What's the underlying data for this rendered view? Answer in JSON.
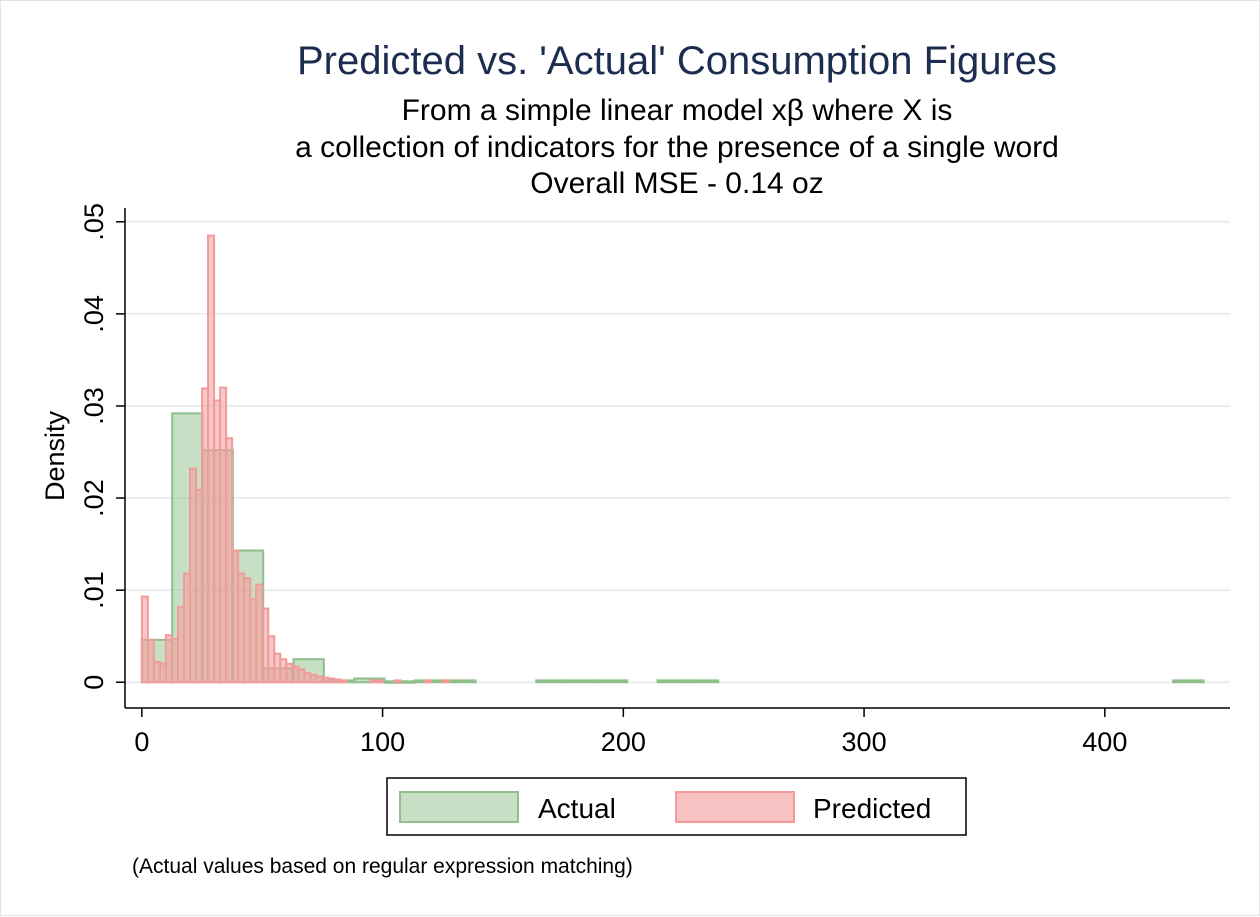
{
  "chart_data": {
    "type": "histogram",
    "title": "Predicted vs. 'Actual' Consumption Figures",
    "subtitle": [
      "From a simple linear model xβ where X is",
      "a collection of indicators for the presence  of a single word",
      "Overall MSE - 0.14 oz"
    ],
    "xlabel": "",
    "ylabel": "Density",
    "xlim": [
      -7,
      452
    ],
    "ylim": [
      -0.0028,
      0.0515
    ],
    "x_ticks": [
      0,
      100,
      200,
      300,
      400
    ],
    "x_tick_labels": [
      "0",
      "100",
      "200",
      "300",
      "400"
    ],
    "y_ticks": [
      0,
      0.01,
      0.02,
      0.03,
      0.04,
      0.05
    ],
    "y_tick_labels": [
      "0",
      ".01",
      ".02",
      ".03",
      ".04",
      ".05"
    ],
    "grid": true,
    "legend_position": "bottom",
    "note": "(Actual values based on regular expression matching)",
    "series": [
      {
        "name": "Actual",
        "color": "#8fbf8a",
        "bins": [
          {
            "x0": 0,
            "x1": 12.6,
            "density": 0.0046
          },
          {
            "x0": 12.6,
            "x1": 25.2,
            "density": 0.0292
          },
          {
            "x0": 25.2,
            "x1": 37.8,
            "density": 0.0252
          },
          {
            "x0": 37.8,
            "x1": 50.4,
            "density": 0.0143
          },
          {
            "x0": 50.4,
            "x1": 63.0,
            "density": 0.0015
          },
          {
            "x0": 63.0,
            "x1": 75.6,
            "density": 0.0025
          },
          {
            "x0": 75.6,
            "x1": 88.2,
            "density": 0.0002
          },
          {
            "x0": 88.2,
            "x1": 100.8,
            "density": 0.0004
          },
          {
            "x0": 100.8,
            "x1": 113.4,
            "density": 0.0001
          },
          {
            "x0": 113.4,
            "x1": 126.0,
            "density": 0.0002
          },
          {
            "x0": 126.0,
            "x1": 138.6,
            "density": 0.0002
          },
          {
            "x0": 163.8,
            "x1": 176.4,
            "density": 0.0002
          },
          {
            "x0": 176.4,
            "x1": 189.0,
            "density": 0.0002
          },
          {
            "x0": 189.0,
            "x1": 201.6,
            "density": 0.0002
          },
          {
            "x0": 214.2,
            "x1": 226.8,
            "density": 0.0002
          },
          {
            "x0": 226.8,
            "x1": 239.4,
            "density": 0.0002
          },
          {
            "x0": 428.4,
            "x1": 441.0,
            "density": 0.0002
          }
        ]
      },
      {
        "name": "Predicted",
        "color": "#f39a9a",
        "bins": [
          {
            "x0": 0,
            "x1": 2.5,
            "density": 0.0093
          },
          {
            "x0": 2.5,
            "x1": 5.0,
            "density": 0.0046
          },
          {
            "x0": 5.0,
            "x1": 7.5,
            "density": 0.0022
          },
          {
            "x0": 7.5,
            "x1": 10.0,
            "density": 0.002
          },
          {
            "x0": 10.0,
            "x1": 12.5,
            "density": 0.0051
          },
          {
            "x0": 12.5,
            "x1": 15.0,
            "density": 0.0047
          },
          {
            "x0": 15.0,
            "x1": 17.5,
            "density": 0.0082
          },
          {
            "x0": 17.5,
            "x1": 20.0,
            "density": 0.0118
          },
          {
            "x0": 20.0,
            "x1": 22.5,
            "density": 0.0232
          },
          {
            "x0": 22.5,
            "x1": 25.0,
            "density": 0.0209
          },
          {
            "x0": 25.0,
            "x1": 27.5,
            "density": 0.0319
          },
          {
            "x0": 27.5,
            "x1": 30.0,
            "density": 0.0485
          },
          {
            "x0": 30.0,
            "x1": 32.5,
            "density": 0.0306
          },
          {
            "x0": 32.5,
            "x1": 35.0,
            "density": 0.032
          },
          {
            "x0": 35.0,
            "x1": 37.5,
            "density": 0.0265
          },
          {
            "x0": 37.5,
            "x1": 40.0,
            "density": 0.0143
          },
          {
            "x0": 40.0,
            "x1": 42.5,
            "density": 0.0118
          },
          {
            "x0": 42.5,
            "x1": 45.0,
            "density": 0.0113
          },
          {
            "x0": 45.0,
            "x1": 47.5,
            "density": 0.009
          },
          {
            "x0": 47.5,
            "x1": 50.0,
            "density": 0.0106
          },
          {
            "x0": 50.0,
            "x1": 52.5,
            "density": 0.008
          },
          {
            "x0": 52.5,
            "x1": 55.0,
            "density": 0.005
          },
          {
            "x0": 55.0,
            "x1": 57.5,
            "density": 0.0031
          },
          {
            "x0": 57.5,
            "x1": 60.0,
            "density": 0.0025
          },
          {
            "x0": 60.0,
            "x1": 62.5,
            "density": 0.002
          },
          {
            "x0": 62.5,
            "x1": 65.0,
            "density": 0.0017
          },
          {
            "x0": 65.0,
            "x1": 67.5,
            "density": 0.0014
          },
          {
            "x0": 67.5,
            "x1": 70.0,
            "density": 0.001
          },
          {
            "x0": 70.0,
            "x1": 72.5,
            "density": 0.0008
          },
          {
            "x0": 72.5,
            "x1": 75.0,
            "density": 0.0006
          },
          {
            "x0": 75.0,
            "x1": 77.5,
            "density": 0.0005
          },
          {
            "x0": 77.5,
            "x1": 80.0,
            "density": 0.0004
          },
          {
            "x0": 80.0,
            "x1": 82.5,
            "density": 0.0003
          },
          {
            "x0": 82.5,
            "x1": 85.0,
            "density": 0.0002
          },
          {
            "x0": 95.0,
            "x1": 97.5,
            "density": 0.0002
          },
          {
            "x0": 97.5,
            "x1": 100.0,
            "density": 0.0002
          },
          {
            "x0": 105.0,
            "x1": 107.5,
            "density": 0.0002
          },
          {
            "x0": 117.5,
            "x1": 120.0,
            "density": 0.0002
          },
          {
            "x0": 125.0,
            "x1": 127.5,
            "density": 0.0002
          }
        ]
      }
    ]
  }
}
